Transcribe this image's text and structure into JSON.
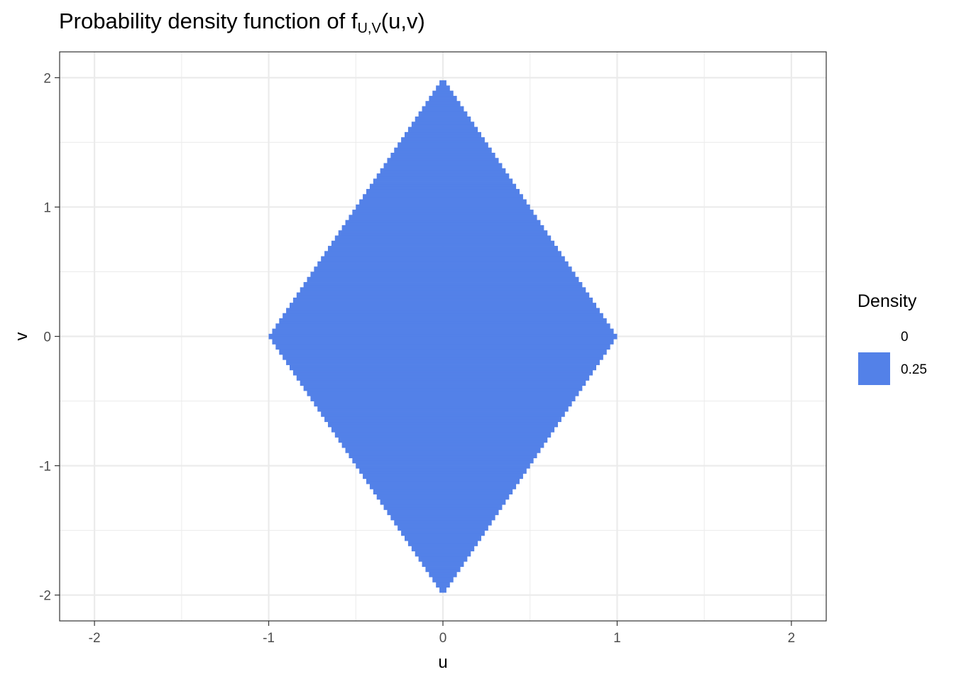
{
  "title": {
    "main": "Probability density function of f",
    "subscript": "U,V",
    "suffix": "(u,v)"
  },
  "chart_data": {
    "type": "heatmap",
    "xlabel": "u",
    "ylabel": "v",
    "xlim": [
      -2.2,
      2.2
    ],
    "ylim": [
      -2.2,
      2.2
    ],
    "x_ticks": [
      -2,
      -1,
      0,
      1,
      2
    ],
    "y_ticks": [
      -2,
      -1,
      0,
      1,
      2
    ],
    "x_tick_labels": [
      "-2",
      "-1",
      "0",
      "1",
      "2"
    ],
    "y_tick_labels": [
      "-2",
      "-1",
      "0",
      "1",
      "2"
    ],
    "grid": true,
    "region": {
      "description_formula": "|u| + |v|/2 <= 1",
      "vertices": [
        [
          -1,
          0
        ],
        [
          0,
          2
        ],
        [
          1,
          0
        ],
        [
          0,
          -2
        ]
      ],
      "grid_step": 0.02,
      "density_inside": 0.25,
      "density_outside": 0
    },
    "legend": {
      "title": "Density",
      "position": "right",
      "entries": [
        {
          "label": "0",
          "value": 0,
          "color": "#ffffff"
        },
        {
          "label": "0.25",
          "value": 0.25,
          "color": "#5381E8"
        }
      ]
    },
    "fill_color": "#5381E8"
  }
}
